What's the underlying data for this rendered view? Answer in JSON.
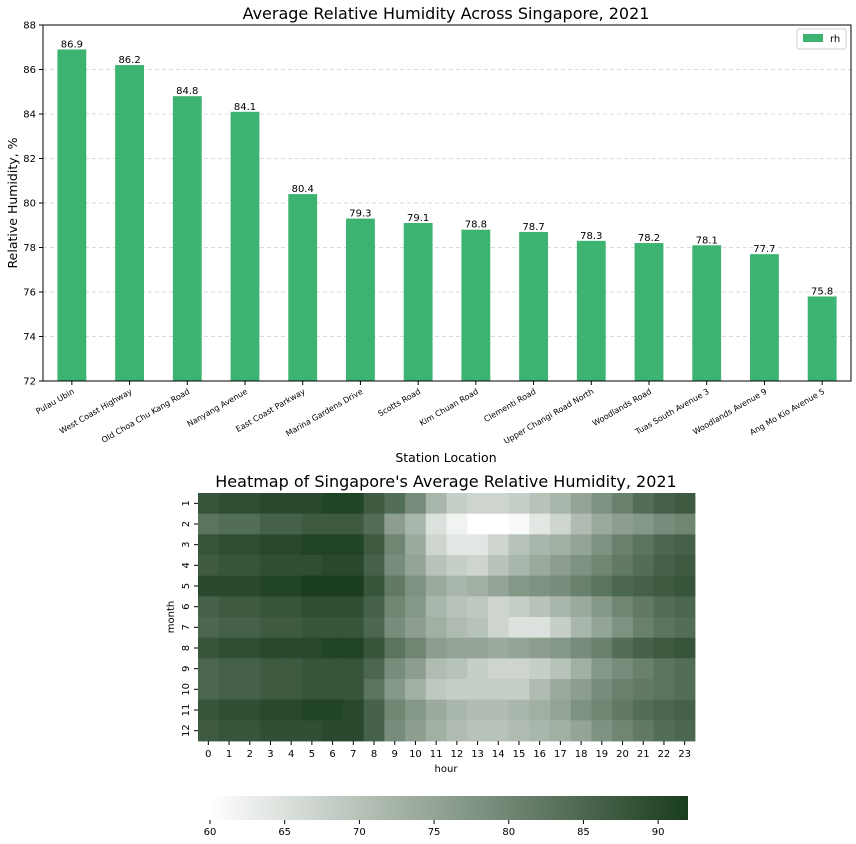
{
  "chart_data": [
    {
      "type": "bar",
      "title": "Average Relative Humidity Across Singapore, 2021",
      "xlabel": "Station Location",
      "ylabel": "Relative Humidity, %",
      "ylim": [
        72,
        88
      ],
      "yticks": [
        72,
        74,
        76,
        78,
        80,
        82,
        84,
        86,
        88
      ],
      "grid": "horizontal-dashed",
      "legend_position": "top-right",
      "categories": [
        "Pulau Ubin",
        "West Coast Highway",
        "Old Choa Chu Kang Road",
        "Nanyang Avenue",
        "East Coast Parkway",
        "Marina Gardens Drive",
        "Scotts Road",
        "Kim Chuan Road",
        "Clementi Road",
        "Upper Changi Road North",
        "Woodlands Road",
        "Tuas South Avenue 3",
        "Woodlands Avenue 9",
        "Ang Mo Kio Avenue 5"
      ],
      "series": [
        {
          "name": "rh",
          "color": "#3cb371",
          "values": [
            86.9,
            86.2,
            84.8,
            84.1,
            80.4,
            79.3,
            79.1,
            78.8,
            78.7,
            78.3,
            78.2,
            78.1,
            77.7,
            75.8
          ]
        }
      ]
    },
    {
      "type": "heatmap",
      "title": "Heatmap of Singapore's Average Relative Humidity, 2021",
      "xlabel": "hour",
      "ylabel": "month",
      "x": [
        0,
        1,
        2,
        3,
        4,
        5,
        6,
        7,
        8,
        9,
        10,
        11,
        12,
        13,
        14,
        15,
        16,
        17,
        18,
        19,
        20,
        21,
        22,
        23
      ],
      "y": [
        1,
        2,
        3,
        4,
        5,
        6,
        7,
        8,
        9,
        10,
        11,
        12
      ],
      "colormap": {
        "low_color": "#ffffff",
        "high_color": "#1a3d1f",
        "range": [
          60,
          92
        ],
        "ticks": [
          60,
          65,
          70,
          75,
          80,
          85,
          90
        ],
        "position": "bottom"
      },
      "values": [
        [
          88,
          89,
          89,
          90,
          90,
          90,
          91,
          91,
          87,
          84,
          79,
          72,
          68,
          67,
          67,
          68,
          70,
          72,
          75,
          78,
          81,
          84,
          86,
          87
        ],
        [
          83,
          84,
          84,
          86,
          86,
          87,
          87,
          87,
          84,
          76,
          72,
          65,
          62,
          60,
          60,
          61,
          64,
          67,
          71,
          74,
          76,
          77,
          79,
          80
        ],
        [
          88,
          89,
          89,
          90,
          90,
          91,
          91,
          91,
          87,
          80,
          74,
          67,
          64,
          64,
          67,
          70,
          72,
          73,
          75,
          78,
          81,
          83,
          85,
          86
        ],
        [
          87,
          88,
          88,
          89,
          89,
          89,
          90,
          90,
          86,
          79,
          75,
          70,
          68,
          67,
          70,
          72,
          74,
          76,
          78,
          80,
          82,
          84,
          86,
          87
        ],
        [
          90,
          90,
          90,
          91,
          91,
          92,
          92,
          92,
          88,
          82,
          78,
          74,
          72,
          73,
          75,
          77,
          78,
          79,
          81,
          83,
          85,
          86,
          87,
          88
        ],
        [
          86,
          87,
          87,
          88,
          88,
          89,
          89,
          89,
          86,
          80,
          77,
          72,
          70,
          69,
          67,
          68,
          70,
          72,
          74,
          77,
          80,
          82,
          84,
          85
        ],
        [
          85,
          86,
          86,
          87,
          87,
          88,
          88,
          88,
          85,
          79,
          76,
          73,
          71,
          70,
          67,
          65,
          65,
          68,
          72,
          75,
          78,
          81,
          83,
          84
        ],
        [
          88,
          89,
          89,
          90,
          90,
          90,
          91,
          91,
          88,
          83,
          80,
          76,
          75,
          75,
          74,
          75,
          76,
          77,
          79,
          81,
          84,
          86,
          87,
          88
        ],
        [
          85,
          86,
          86,
          87,
          87,
          88,
          88,
          88,
          85,
          79,
          76,
          71,
          70,
          68,
          67,
          67,
          68,
          70,
          73,
          77,
          79,
          81,
          83,
          84
        ],
        [
          85,
          86,
          86,
          87,
          87,
          88,
          88,
          88,
          83,
          77,
          73,
          69,
          68,
          68,
          68,
          68,
          71,
          74,
          76,
          79,
          81,
          82,
          83,
          84
        ],
        [
          88,
          89,
          89,
          90,
          90,
          91,
          91,
          90,
          86,
          80,
          77,
          74,
          72,
          71,
          71,
          72,
          73,
          75,
          78,
          80,
          82,
          84,
          85,
          86
        ],
        [
          87,
          88,
          88,
          89,
          89,
          89,
          90,
          90,
          86,
          79,
          76,
          73,
          71,
          70,
          70,
          71,
          72,
          73,
          75,
          78,
          80,
          82,
          84,
          85
        ]
      ]
    }
  ]
}
